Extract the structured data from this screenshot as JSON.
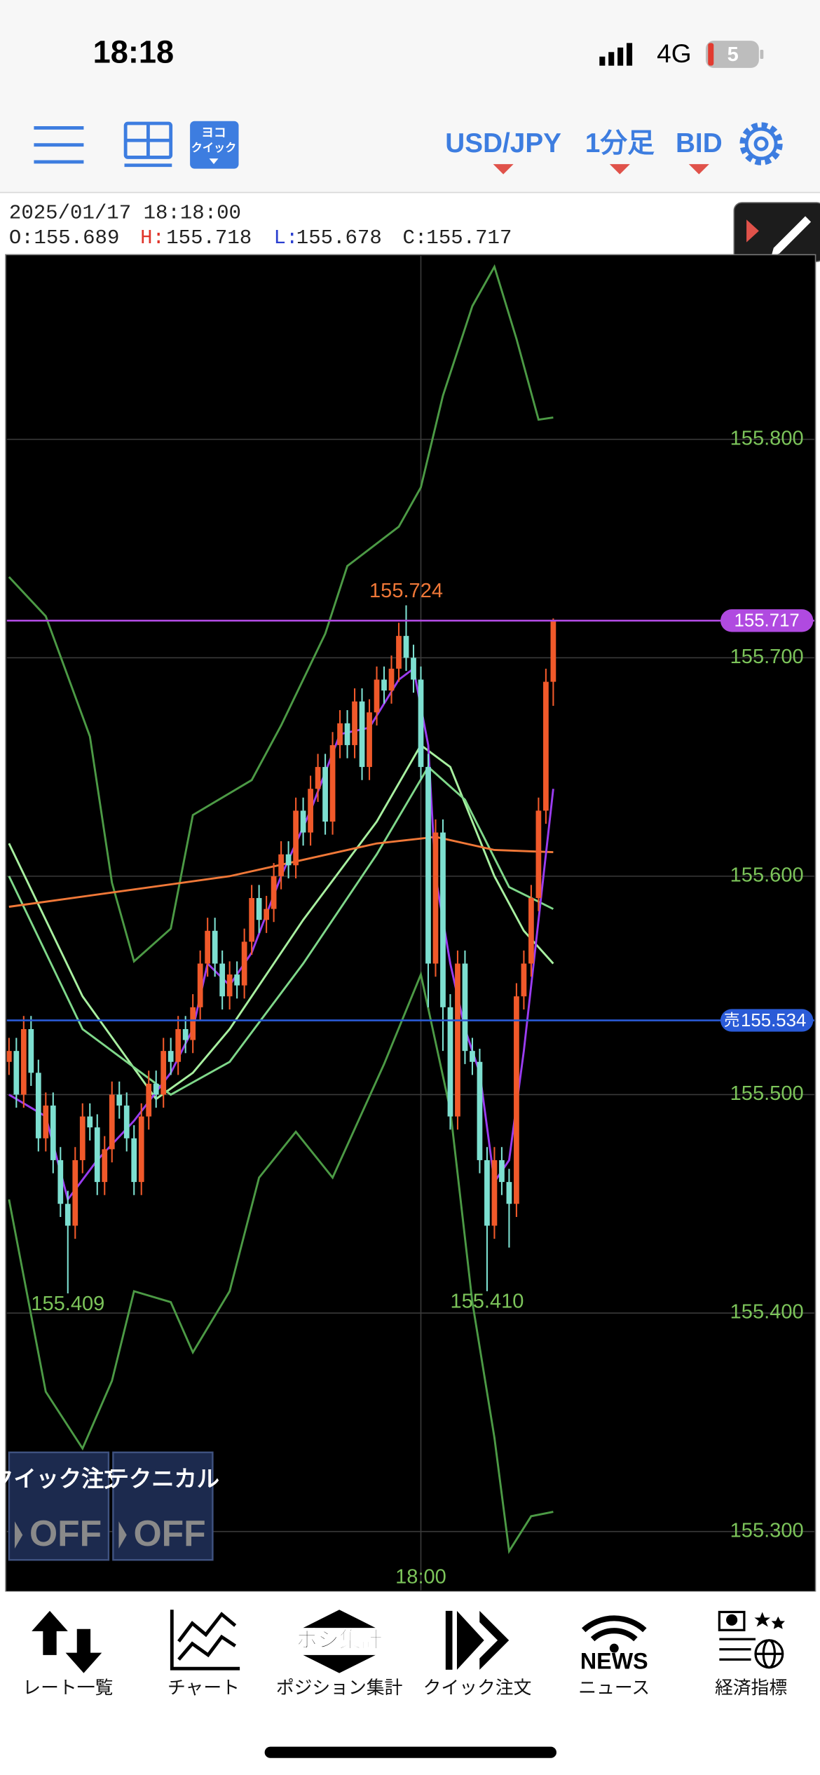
{
  "status_bar": {
    "time": "18:18",
    "network": "4G",
    "battery": "5"
  },
  "header": {
    "quick_badge": [
      "ヨコ",
      "クイック"
    ],
    "pair": "USD/JPY",
    "timeframe": "1分足",
    "price_type": "BID"
  },
  "ohlc_info": {
    "datetime": "2025/01/17 18:18:00",
    "open_label": "O:",
    "open": "155.689",
    "high_label": "H:",
    "high": "155.718",
    "low_label": "L:",
    "low": "155.678",
    "close_label": "C:",
    "close": "155.717"
  },
  "chart_data": {
    "type": "candlestick",
    "categories": [
      null,
      null,
      null,
      null,
      null,
      null,
      null,
      null,
      null,
      null,
      null,
      null,
      null,
      null,
      null,
      null,
      null,
      null,
      null,
      null,
      null,
      null,
      null,
      null,
      null,
      null,
      null,
      null,
      null,
      null,
      null,
      null,
      null,
      null,
      null,
      null,
      null,
      null,
      null,
      null,
      null,
      null,
      null,
      null,
      null,
      null,
      null,
      null,
      null,
      null,
      null,
      null,
      null,
      null,
      null,
      null,
      "18:00",
      null,
      null,
      null,
      null,
      null,
      null,
      null,
      null,
      null,
      null,
      null,
      null,
      null,
      null,
      null,
      null,
      null,
      null
    ],
    "open": [
      155.515,
      155.52,
      155.5,
      155.53,
      155.51,
      155.48,
      155.495,
      155.47,
      155.45,
      155.44,
      155.47,
      155.49,
      155.485,
      155.46,
      155.475,
      155.5,
      155.495,
      155.48,
      155.46,
      155.49,
      155.505,
      155.5,
      155.52,
      155.515,
      155.53,
      155.525,
      155.54,
      155.56,
      155.575,
      155.56,
      155.545,
      155.555,
      155.55,
      155.57,
      155.59,
      155.58,
      155.585,
      155.6,
      155.61,
      155.605,
      155.63,
      155.62,
      155.64,
      155.65,
      155.625,
      155.66,
      155.67,
      155.66,
      155.68,
      155.65,
      155.675,
      155.69,
      155.685,
      155.695,
      155.71,
      155.7,
      155.69,
      155.65,
      155.56,
      155.62,
      155.54,
      155.49,
      155.56,
      155.52,
      155.515,
      155.47,
      155.44,
      155.47,
      155.46,
      155.45,
      155.545,
      155.56,
      155.59,
      155.63,
      155.689
    ],
    "high": [
      155.526,
      155.526,
      155.536,
      155.536,
      155.516,
      155.501,
      155.501,
      155.476,
      155.456,
      155.476,
      155.496,
      155.496,
      155.491,
      155.481,
      155.506,
      155.506,
      155.501,
      155.486,
      155.496,
      155.511,
      155.511,
      155.526,
      155.526,
      155.536,
      155.536,
      155.546,
      155.566,
      155.581,
      155.581,
      155.566,
      155.561,
      155.561,
      155.576,
      155.596,
      155.596,
      155.591,
      155.606,
      155.616,
      155.616,
      155.636,
      155.636,
      155.646,
      155.656,
      155.656,
      155.666,
      155.676,
      155.676,
      155.686,
      155.686,
      155.681,
      155.696,
      155.696,
      155.701,
      155.716,
      155.724,
      155.706,
      155.696,
      155.656,
      155.626,
      155.626,
      155.546,
      155.566,
      155.566,
      155.526,
      155.521,
      155.476,
      155.476,
      155.476,
      155.466,
      155.551,
      155.566,
      155.596,
      155.636,
      155.695,
      155.718
    ],
    "low": [
      155.509,
      155.494,
      155.494,
      155.504,
      155.474,
      155.474,
      155.464,
      155.444,
      155.409,
      155.434,
      155.464,
      155.479,
      155.454,
      155.454,
      155.469,
      155.489,
      155.474,
      155.454,
      155.454,
      155.484,
      155.494,
      155.494,
      155.509,
      155.509,
      155.519,
      155.519,
      155.534,
      155.554,
      155.554,
      155.539,
      155.539,
      155.544,
      155.544,
      155.564,
      155.574,
      155.574,
      155.579,
      155.594,
      155.599,
      155.599,
      155.614,
      155.614,
      155.634,
      155.619,
      155.619,
      155.654,
      155.654,
      155.654,
      155.644,
      155.644,
      155.669,
      155.679,
      155.679,
      155.689,
      155.694,
      155.684,
      155.644,
      155.54,
      155.554,
      155.52,
      155.484,
      155.484,
      155.514,
      155.509,
      155.464,
      155.41,
      155.434,
      155.454,
      155.43,
      155.444,
      155.539,
      155.554,
      155.584,
      155.624,
      155.678
    ],
    "close": [
      155.52,
      155.5,
      155.53,
      155.51,
      155.48,
      155.495,
      155.47,
      155.45,
      155.44,
      155.47,
      155.49,
      155.485,
      155.46,
      155.475,
      155.5,
      155.495,
      155.48,
      155.46,
      155.49,
      155.505,
      155.5,
      155.52,
      155.515,
      155.53,
      155.525,
      155.54,
      155.56,
      155.575,
      155.56,
      155.545,
      155.555,
      155.55,
      155.57,
      155.59,
      155.58,
      155.585,
      155.6,
      155.61,
      155.605,
      155.63,
      155.62,
      155.64,
      155.65,
      155.625,
      155.66,
      155.67,
      155.66,
      155.68,
      155.65,
      155.675,
      155.69,
      155.685,
      155.695,
      155.71,
      155.7,
      155.69,
      155.65,
      155.56,
      155.62,
      155.54,
      155.49,
      155.56,
      155.52,
      155.515,
      155.47,
      155.44,
      155.47,
      155.46,
      155.45,
      155.545,
      155.56,
      155.59,
      155.63,
      155.689,
      155.717
    ],
    "up_color": "#f0592a",
    "down_color": "#7ddfd0",
    "lines": [
      {
        "color": "#4c9a45",
        "x": [
          0,
          5,
          11,
          14,
          17,
          22,
          25,
          30,
          33,
          37,
          43,
          46,
          53,
          56,
          59,
          63,
          66,
          69,
          72,
          74
        ],
        "values": [
          155.737,
          155.719,
          155.664,
          155.597,
          155.561,
          155.576,
          155.628,
          155.638,
          155.644,
          155.669,
          155.711,
          155.742,
          155.76,
          155.778,
          155.82,
          155.861,
          155.879,
          155.846,
          155.809,
          155.81
        ]
      },
      {
        "color": "#4c9a45",
        "x": [
          0,
          5,
          10,
          14,
          17,
          22,
          25,
          30,
          34,
          39,
          44,
          51,
          56,
          60,
          63,
          66,
          68,
          71,
          74
        ],
        "values": [
          155.452,
          155.364,
          155.338,
          155.369,
          155.41,
          155.405,
          155.382,
          155.41,
          155.462,
          155.483,
          155.462,
          155.514,
          155.555,
          155.493,
          155.405,
          155.343,
          155.291,
          155.307,
          155.309
        ]
      },
      {
        "color": "#a8f0a0",
        "x": [
          0,
          10,
          20,
          25,
          30,
          40,
          50,
          56,
          60,
          66,
          70,
          74
        ],
        "values": [
          155.615,
          155.545,
          155.498,
          155.51,
          155.53,
          155.58,
          155.625,
          155.66,
          155.65,
          155.6,
          155.575,
          155.56
        ]
      },
      {
        "color": "#7fd88a",
        "x": [
          0,
          10,
          22,
          30,
          40,
          50,
          57,
          62,
          68,
          74
        ],
        "values": [
          155.6,
          155.53,
          155.5,
          155.515,
          155.56,
          155.61,
          155.65,
          155.635,
          155.595,
          155.585
        ]
      },
      {
        "color": "#f07838",
        "x": [
          0,
          30,
          50,
          58,
          66,
          74
        ],
        "values": [
          155.586,
          155.6,
          155.615,
          155.618,
          155.612,
          155.611
        ]
      },
      {
        "color": "#9a3cf0",
        "x": [
          0,
          5,
          8,
          12,
          17,
          22,
          25,
          27,
          30,
          33,
          37,
          41,
          45,
          49,
          53,
          55,
          57,
          58,
          60,
          62,
          64,
          66,
          68,
          70,
          72,
          74
        ],
        "values": [
          155.5,
          155.49,
          155.452,
          155.47,
          155.488,
          155.51,
          155.53,
          155.56,
          155.55,
          155.565,
          155.6,
          155.63,
          155.665,
          155.668,
          155.69,
          155.695,
          155.66,
          155.6,
          155.56,
          155.53,
          155.51,
          155.46,
          155.47,
          155.52,
          155.58,
          155.64
        ]
      }
    ],
    "xlim": [
      -0.3,
      109.5
    ],
    "ylim": [
      155.273,
      155.884
    ],
    "yticks": [
      {
        "value": 155.3,
        "label": "155.300"
      },
      {
        "value": 155.4,
        "label": "155.400"
      },
      {
        "value": 155.5,
        "label": "155.500"
      },
      {
        "value": 155.6,
        "label": "155.600"
      },
      {
        "value": 155.7,
        "label": "155.700"
      },
      {
        "value": 155.8,
        "label": "155.800"
      }
    ],
    "grid": true,
    "price_lines": [
      {
        "value": 155.717,
        "color": "#b04ae0"
      },
      {
        "value": 155.534,
        "prefix": "売",
        "color": "#2a5bd7"
      }
    ],
    "annotations": [
      {
        "x": 54,
        "value": 155.724,
        "label": "155.724",
        "color": "#f07838"
      },
      {
        "x": 8,
        "value": 155.409,
        "label": "155.409",
        "color": "#7cc45a"
      },
      {
        "x": 65,
        "value": 155.41,
        "label": "155.410",
        "color": "#7cc45a"
      }
    ]
  },
  "toggles": [
    {
      "label": "クイック注文",
      "state": "OFF"
    },
    {
      "label": "テクニカル",
      "state": "OFF"
    }
  ],
  "nav": [
    {
      "label": "レート一覧"
    },
    {
      "label": "チャート"
    },
    {
      "label": "ポジション集計",
      "icon_text": "ポジ集計"
    },
    {
      "label": "クイック注文"
    },
    {
      "label": "ニュース",
      "icon_text": "NEWS"
    },
    {
      "label": "経済指標"
    }
  ]
}
